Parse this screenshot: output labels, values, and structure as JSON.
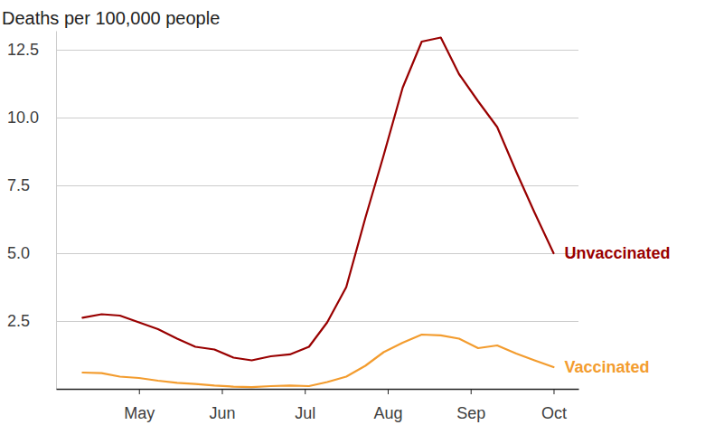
{
  "chart_data": {
    "type": "line",
    "title": "Deaths per 100,000 people",
    "x": [
      4.32,
      4.55,
      4.77,
      5.0,
      5.23,
      5.46,
      5.68,
      5.91,
      6.14,
      6.36,
      6.59,
      6.82,
      7.05,
      7.27,
      7.5,
      7.73,
      7.95,
      8.18,
      8.41,
      8.64,
      8.86,
      9.09,
      9.32,
      9.55,
      9.77,
      10.0
    ],
    "xlim": [
      4.0,
      10.3
    ],
    "xticks": [
      {
        "value": 5,
        "label": "May"
      },
      {
        "value": 6,
        "label": "Jun"
      },
      {
        "value": 7,
        "label": "Jul"
      },
      {
        "value": 8,
        "label": "Aug"
      },
      {
        "value": 9,
        "label": "Sep"
      },
      {
        "value": 10,
        "label": "Oct"
      }
    ],
    "ylim": [
      0,
      13.2
    ],
    "yticks": [
      2.5,
      {
        "value": 5,
        "label": "5.0"
      },
      7.5,
      {
        "value": 10,
        "label": "10.0"
      },
      12.5
    ],
    "grid": true,
    "series": [
      {
        "name": "Unvaccinated",
        "color": "#990000",
        "values": [
          2.62,
          2.75,
          2.7,
          2.45,
          2.2,
          1.85,
          1.55,
          1.45,
          1.15,
          1.05,
          1.2,
          1.27,
          1.55,
          2.45,
          3.75,
          6.3,
          8.6,
          11.1,
          12.8,
          12.95,
          11.6,
          10.6,
          9.65,
          8.0,
          6.5,
          5.0
        ]
      },
      {
        "name": "Vaccinated",
        "color": "#f39c2e",
        "values": [
          0.6,
          0.58,
          0.45,
          0.4,
          0.3,
          0.22,
          0.18,
          0.12,
          0.08,
          0.06,
          0.1,
          0.12,
          0.1,
          0.25,
          0.45,
          0.85,
          1.35,
          1.7,
          2.0,
          1.97,
          1.85,
          1.5,
          1.6,
          1.3,
          1.05,
          0.8
        ]
      }
    ]
  }
}
